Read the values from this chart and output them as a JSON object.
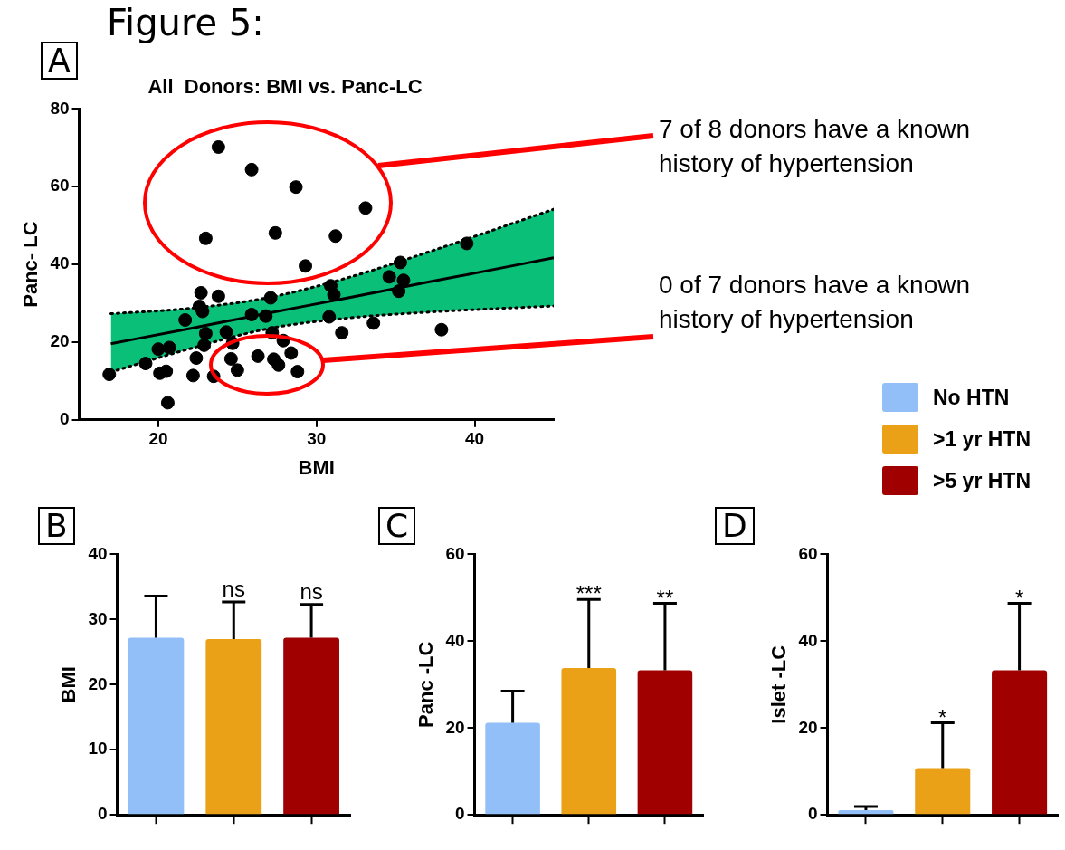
{
  "chart_data": [
    {
      "type": "scatter",
      "title": "All  Donors: BMI vs. Panc-LC",
      "xlabel": "BMI",
      "ylabel": "Panc- LC",
      "xlim": [
        15,
        45
      ],
      "xticks": [
        20,
        30,
        40
      ],
      "ylim": [
        0,
        80
      ],
      "yticks": [
        0,
        20,
        40,
        60,
        80
      ],
      "series": [
        {
          "type": "scatter",
          "color": "#000000",
          "marker": "circle",
          "x": [
            23.8,
            25.9,
            28.7,
            23.0,
            27.4,
            29.3,
            22.7,
            23.8,
            27.1,
            22.6,
            22.8,
            25.9,
            26.8,
            21.7,
            23.0,
            24.3,
            27.2,
            27.9,
            24.7,
            22.9,
            20.0,
            20.7,
            22.4,
            24.6,
            26.3,
            27.3,
            27.6,
            28.4,
            19.2,
            16.9,
            20.1,
            20.5,
            22.2,
            23.5,
            25.0,
            28.8,
            20.6,
            33.1,
            31.2,
            39.5,
            35.3,
            34.6,
            35.5,
            35.2,
            30.9,
            31.1,
            30.8,
            33.6,
            31.6,
            37.9
          ],
          "values": [
            70.2,
            64.4,
            59.9,
            46.7,
            48.1,
            39.6,
            32.7,
            31.8,
            31.4,
            29.2,
            27.9,
            27.1,
            26.7,
            25.7,
            22.2,
            22.6,
            22.4,
            20.4,
            19.7,
            19.2,
            18.2,
            18.6,
            15.9,
            15.7,
            16.4,
            15.6,
            14.1,
            17.2,
            14.5,
            11.7,
            12.0,
            12.5,
            11.4,
            11.2,
            12.8,
            12.4,
            4.4,
            54.5,
            47.3,
            45.4,
            40.5,
            36.8,
            35.9,
            33.1,
            34.5,
            32.2,
            26.5,
            24.9,
            22.4,
            23.2
          ]
        },
        {
          "type": "line",
          "color": "#000000",
          "marker": "none",
          "line_style": "solid",
          "x": [
            17,
            22,
            27,
            32,
            37,
            45
          ],
          "values": [
            19.6,
            23.5,
            27.5,
            31.4,
            35.4,
            41.7
          ],
          "lower": [
            12.3,
            18.3,
            23.5,
            26.2,
            27.7,
            29.3
          ],
          "upper": [
            27.3,
            28.7,
            31.5,
            36.6,
            43.1,
            54.2
          ]
        },
        {
          "type": "line",
          "color": "#000000",
          "marker": "none",
          "line_style": "dotted",
          "x": [
            17,
            22,
            27,
            32,
            37,
            45
          ],
          "values": [
            27.3,
            28.7,
            31.5,
            36.6,
            43.1,
            54.2
          ]
        },
        {
          "type": "line",
          "color": "#000000",
          "marker": "none",
          "line_style": "dotted",
          "x": [
            17,
            22,
            27,
            32,
            37,
            45
          ],
          "values": [
            12.3,
            18.3,
            23.5,
            26.2,
            27.7,
            29.3
          ]
        }
      ],
      "annotations": [
        "Figure 5:",
        "A",
        "7 of 8 donors have a known history of hypertension",
        "0 of 7 donors have a known history of hypertension"
      ]
    },
    {
      "type": "bar",
      "ylabel": "BMI",
      "categories": [
        null,
        null,
        null
      ],
      "stacked": true,
      "ylim": [
        0,
        40
      ],
      "yticks": [
        0,
        10,
        20,
        30,
        40
      ],
      "annotations": [
        "B"
      ],
      "series": [
        {
          "color": "#92bff8",
          "values": [
            27.2,
            null,
            null
          ],
          "errors": [
            [
              27.2,
              33.6
            ],
            null,
            null
          ]
        },
        {
          "color": "#eba117",
          "values": [
            null,
            27.0,
            null
          ],
          "errors": [
            null,
            [
              27.0,
              32.7
            ],
            null
          ],
          "value_labels": [
            null,
            "ns",
            null
          ]
        },
        {
          "color": "#a00000",
          "values": [
            null,
            null,
            27.2
          ],
          "errors": [
            null,
            null,
            [
              27.2,
              32.3
            ]
          ],
          "value_labels": [
            null,
            null,
            "ns"
          ]
        }
      ]
    },
    {
      "type": "bar",
      "ylabel": "Panc -LC",
      "categories": [
        null,
        null,
        null
      ],
      "stacked": true,
      "ylim": [
        0,
        60
      ],
      "yticks": [
        0,
        20,
        40,
        60
      ],
      "annotations": [
        "C"
      ],
      "series": [
        {
          "color": "#92bff8",
          "values": [
            21.2,
            null,
            null
          ],
          "errors": [
            [
              21.2,
              28.5
            ],
            null,
            null
          ]
        },
        {
          "color": "#eba117",
          "values": [
            null,
            33.8,
            null
          ],
          "errors": [
            null,
            [
              33.8,
              49.6
            ],
            null
          ],
          "value_labels": [
            null,
            "***",
            null
          ]
        },
        {
          "color": "#a00000",
          "values": [
            null,
            null,
            33.3
          ],
          "errors": [
            null,
            null,
            [
              33.3,
              48.7
            ]
          ],
          "value_labels": [
            null,
            null,
            "**"
          ]
        }
      ]
    },
    {
      "type": "bar",
      "ylabel": "Islet -LC",
      "categories": [
        null,
        null,
        null
      ],
      "stacked": true,
      "ylim": [
        0,
        60
      ],
      "yticks": [
        0,
        20,
        40,
        60
      ],
      "annotations": [
        "D"
      ],
      "legend": "top right",
      "series": [
        {
          "name": "No HTN",
          "color": "#92bff8",
          "values": [
            1.1,
            null,
            null
          ],
          "errors": [
            [
              1.1,
              1.9
            ],
            null,
            null
          ]
        },
        {
          "name": ">1 yr HTN",
          "color": "#eba117",
          "values": [
            null,
            10.8,
            null
          ],
          "errors": [
            null,
            [
              10.8,
              21.2
            ],
            null
          ],
          "value_labels": [
            null,
            "*",
            null
          ]
        },
        {
          "name": ">5 yr HTN",
          "color": "#a00000",
          "values": [
            null,
            null,
            33.3
          ],
          "errors": [
            null,
            null,
            [
              33.3,
              48.7
            ]
          ],
          "value_labels": [
            null,
            null,
            "*"
          ]
        }
      ]
    }
  ]
}
